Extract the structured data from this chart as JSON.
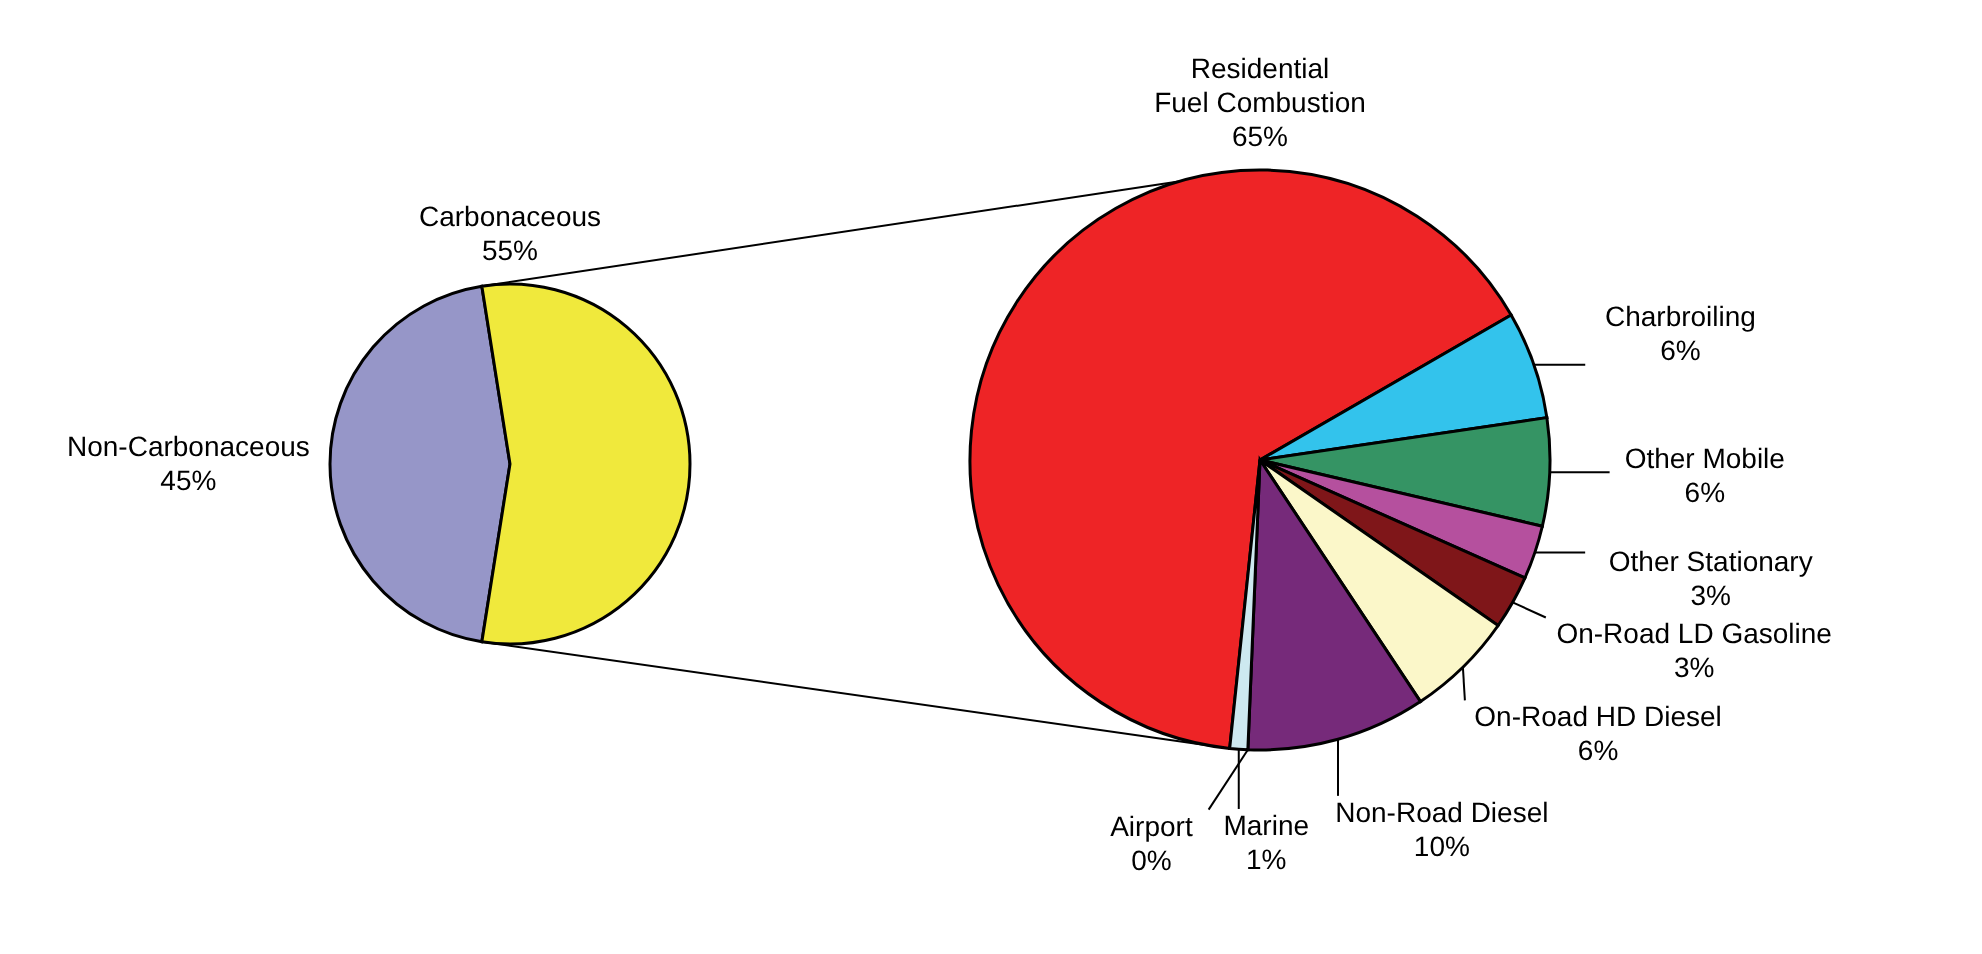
{
  "chart_data": [
    {
      "type": "pie",
      "categories": [
        "Non-Carbonaceous",
        "Carbonaceous"
      ],
      "values": [
        45,
        55
      ],
      "colors": [
        "#9696c8",
        "#f0e93c"
      ],
      "value_labels": [
        "45%",
        "55%"
      ]
    },
    {
      "type": "pie",
      "categories": [
        "Residential Fuel Combustion",
        "Charbroiling",
        "Other Mobile",
        "Other Stationary",
        "On-Road LD Gasoline",
        "On-Road HD Diesel",
        "Non-Road Diesel",
        "Airport",
        "Marine"
      ],
      "values": [
        65,
        6,
        6,
        3,
        3,
        6,
        10,
        0,
        1
      ],
      "colors": [
        "#ee2426",
        "#33c3ec",
        "#359464",
        "#b5509e",
        "#7f1619",
        "#fbf7c9",
        "#762a7a",
        "#a0468f",
        "#cde9f0"
      ],
      "value_labels": [
        "65%",
        "6%",
        "6%",
        "3%",
        "3%",
        "6%",
        "10%",
        "0%",
        "1%"
      ]
    }
  ]
}
